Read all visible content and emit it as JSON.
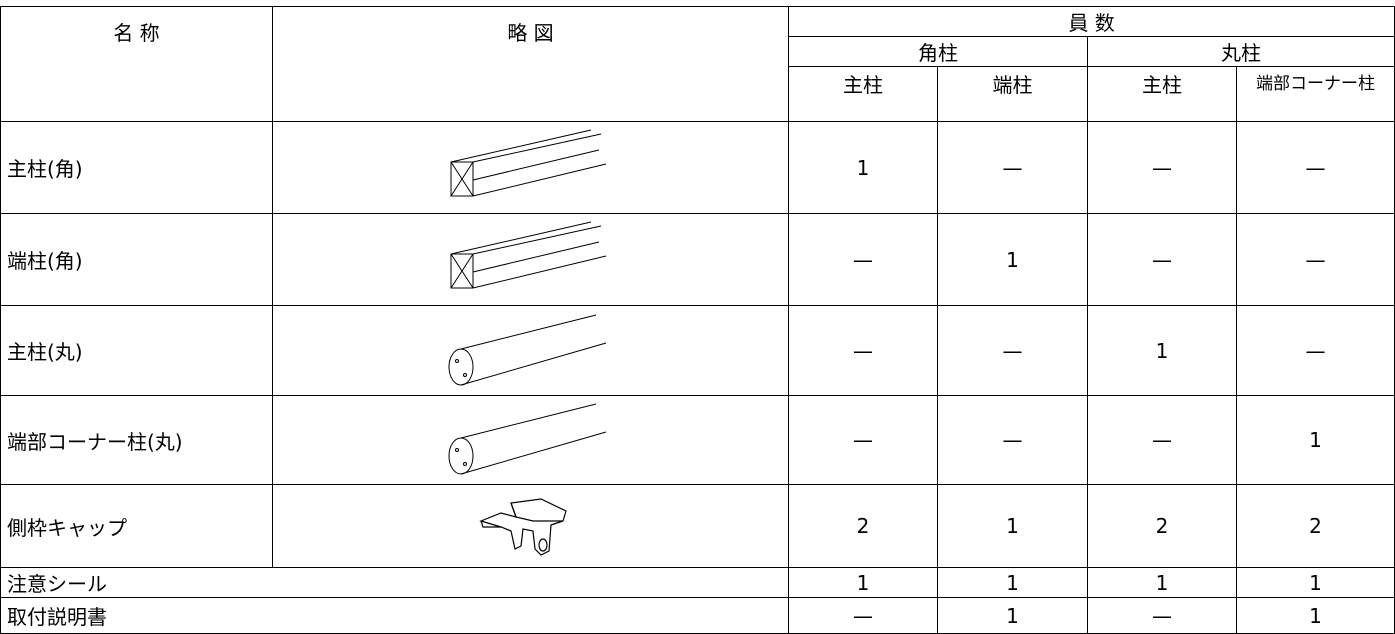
{
  "table": {
    "header": {
      "name": "名 称",
      "sketch": "略 図",
      "count": "員 数",
      "groups": [
        "角柱",
        "丸柱"
      ],
      "subs": [
        "主柱",
        "端柱",
        "主柱",
        "端部コーナー柱"
      ]
    },
    "rows": [
      {
        "name": "主柱(角)",
        "counts": [
          1,
          "—",
          "—",
          "—"
        ]
      },
      {
        "name": "端柱(角)",
        "counts": [
          "—",
          1,
          "—",
          "—"
        ]
      },
      {
        "name": "主柱(丸)",
        "counts": [
          "—",
          "—",
          1,
          "—"
        ]
      },
      {
        "name": "端部コーナー柱(丸)",
        "counts": [
          "—",
          "—",
          "—",
          1
        ]
      },
      {
        "name": "側枠キャップ",
        "counts": [
          2,
          1,
          2,
          2
        ]
      },
      {
        "name": "注意シール",
        "counts": [
          1,
          1,
          1,
          1
        ]
      },
      {
        "name": "取付説明書",
        "counts": [
          "—",
          1,
          "—",
          1
        ]
      }
    ]
  }
}
